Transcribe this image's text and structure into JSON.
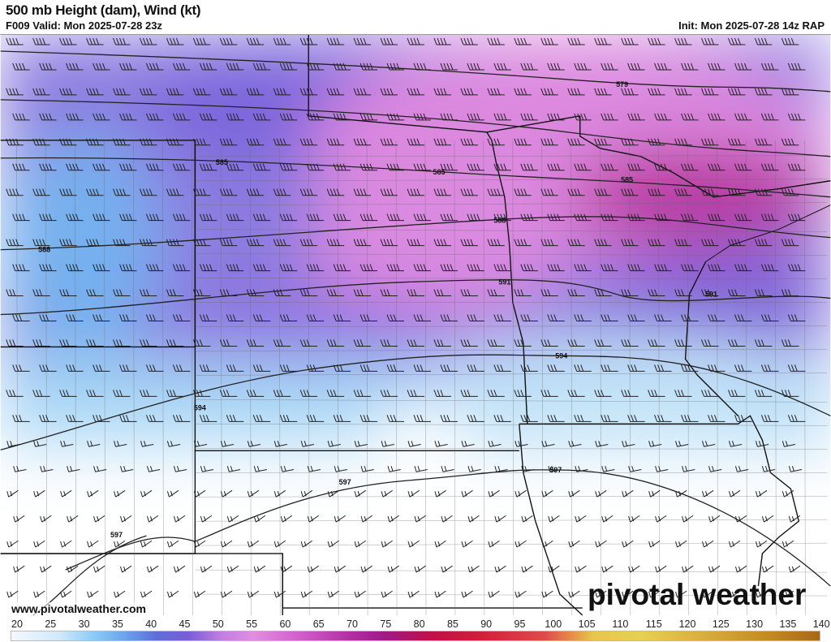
{
  "header": {
    "title": "500 mb Height (dam), Wind (kt)",
    "valid": "F009 Valid: Mon 2025-07-28 23z",
    "init": "Init: Mon 2025-07-28 14z RAP"
  },
  "map": {
    "contour_labels": [
      "579",
      "585",
      "585",
      "585",
      "588",
      "588",
      "591",
      "591",
      "594",
      "594",
      "597",
      "597",
      "597"
    ],
    "colors": {
      "low": "#6a5bd6",
      "blue": "#8cc6f2",
      "pink": "#d98ae0",
      "magenta": "#b8309e",
      "clear": "#ffffff"
    }
  },
  "branding": {
    "website": "www.pivotalweather.com",
    "logo": "pivotal weather"
  },
  "colorbar": {
    "ticks": [
      "20",
      "25",
      "30",
      "35",
      "40",
      "45",
      "50",
      "55",
      "60",
      "65",
      "70",
      "75",
      "80",
      "85",
      "90",
      "95",
      "100",
      "105",
      "110",
      "115",
      "120",
      "125",
      "130",
      "135",
      "140"
    ],
    "unit": "kt"
  }
}
